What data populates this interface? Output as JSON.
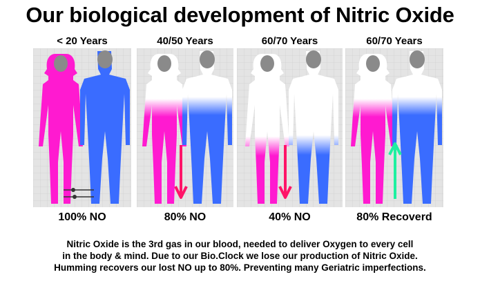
{
  "title": "Our biological development of Nitric Oxide",
  "panels": [
    {
      "label": "< 20 Years",
      "result": "100% NO",
      "arrow": "none"
    },
    {
      "label": "40/50 Years",
      "result": "80% NO",
      "arrow": "down"
    },
    {
      "label": "60/70 Years",
      "result": "40% NO",
      "arrow": "down"
    },
    {
      "label": "60/70 Years",
      "result": "80% Recoverd",
      "arrow": "up"
    }
  ],
  "caption": [
    "Nitric Oxide is the 3rd gas in our blood, needed to deliver Oxygen to every cell",
    "in the body & mind. Due to our Bio.Clock we lose our production of Nitric Oxide.",
    "Humming recovers our lost NO up to 80%. Preventing many Geriatric imperfections."
  ],
  "colors": {
    "female": "#ff1ad0",
    "male": "#3a6cff",
    "head": "#8a8a8a",
    "arrow_down": "#ff1468",
    "arrow_up": "#1ef0a0",
    "panel_bg": "#e4e4e4",
    "grid": "#cccccc"
  },
  "icons": [
    "female-silhouette-icon",
    "male-silhouette-icon",
    "slider-icon"
  ]
}
